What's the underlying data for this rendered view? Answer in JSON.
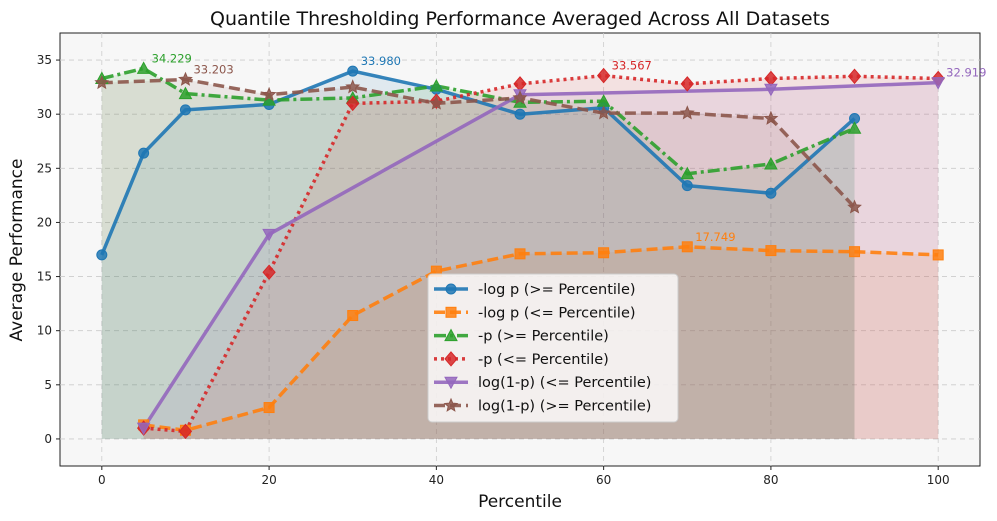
{
  "chart_data": {
    "type": "line",
    "title": "Quantile Thresholding Performance Averaged Across All Datasets",
    "xlabel": "Percentile",
    "ylabel": "Average Performance",
    "xlim": [
      -5,
      105
    ],
    "ylim": [
      -2.5,
      37.5
    ],
    "xticks": [
      0,
      20,
      40,
      60,
      80,
      100
    ],
    "yticks": [
      0,
      5,
      10,
      15,
      20,
      25,
      30,
      35
    ],
    "grid": true,
    "legend_position": "lower-center",
    "series": [
      {
        "name": "-log p (>= Percentile)",
        "color": "#1f77b4",
        "marker": "circle",
        "dash": "solid",
        "x": [
          0,
          5,
          10,
          20,
          30,
          40,
          50,
          60,
          70,
          80,
          90
        ],
        "values": [
          17.0,
          26.4,
          30.4,
          30.9,
          33.98,
          32.3,
          30.0,
          30.6,
          23.4,
          22.7,
          29.6
        ]
      },
      {
        "name": "-log p (<= Percentile)",
        "color": "#ff7f0e",
        "marker": "square",
        "dash": "dashed",
        "x": [
          5,
          10,
          20,
          30,
          40,
          50,
          60,
          70,
          80,
          90,
          100
        ],
        "values": [
          1.3,
          0.8,
          2.9,
          11.4,
          15.5,
          17.1,
          17.2,
          17.749,
          17.4,
          17.3,
          17.0
        ]
      },
      {
        "name": "-p (>= Percentile)",
        "color": "#2ca02c",
        "marker": "triangle-up",
        "dash": "dashdot",
        "x": [
          0,
          5,
          10,
          20,
          30,
          40,
          50,
          60,
          70,
          80,
          90
        ],
        "values": [
          33.3,
          34.229,
          31.9,
          31.3,
          31.5,
          32.6,
          31.1,
          31.2,
          24.5,
          25.4,
          28.7
        ]
      },
      {
        "name": "-p (<= Percentile)",
        "color": "#d62728",
        "marker": "diamond",
        "dash": "dotted",
        "x": [
          5,
          10,
          20,
          30,
          40,
          50,
          60,
          70,
          80,
          90,
          100
        ],
        "values": [
          1.0,
          0.7,
          15.4,
          31.0,
          31.2,
          32.8,
          33.567,
          32.8,
          33.3,
          33.5,
          33.3
        ]
      },
      {
        "name": "log(1-p) (<= Percentile)",
        "color": "#9467bd",
        "marker": "triangle-down",
        "dash": "solid",
        "x": [
          5,
          20,
          50,
          80,
          100
        ],
        "values": [
          1.0,
          18.9,
          31.8,
          32.3,
          32.919
        ]
      },
      {
        "name": "log(1-p) (>= Percentile)",
        "color": "#8c564b",
        "marker": "star",
        "dash": "dashed",
        "x": [
          0,
          10,
          20,
          30,
          40,
          50,
          60,
          70,
          80,
          90
        ],
        "values": [
          32.9,
          33.203,
          31.8,
          32.5,
          31.0,
          31.5,
          30.1,
          30.1,
          29.6,
          21.4
        ]
      }
    ],
    "annotations": [
      {
        "text": "34.229",
        "x": 5,
        "y": 34.229,
        "color": "#2ca02c"
      },
      {
        "text": "33.203",
        "x": 10,
        "y": 33.203,
        "color": "#8c564b"
      },
      {
        "text": "33.980",
        "x": 30,
        "y": 33.98,
        "color": "#1f77b4"
      },
      {
        "text": "33.567",
        "x": 60,
        "y": 33.567,
        "color": "#d62728"
      },
      {
        "text": "17.749",
        "x": 70,
        "y": 17.749,
        "color": "#ff7f0e"
      },
      {
        "text": "32.919",
        "x": 100,
        "y": 32.919,
        "color": "#9467bd"
      }
    ]
  }
}
